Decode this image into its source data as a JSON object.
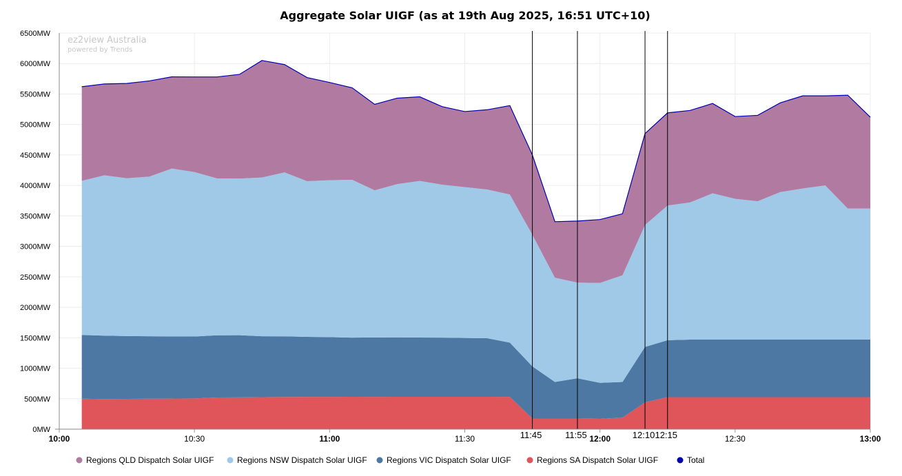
{
  "chart_data": {
    "type": "area",
    "stacked": true,
    "title": "Aggregate Solar UIGF (as at 19th Aug 2025, 16:51 UTC+10)",
    "watermark": {
      "line1": "ez2view Australia",
      "line2": "powered by Trends"
    },
    "x": [
      "10:05",
      "10:10",
      "10:15",
      "10:20",
      "10:25",
      "10:30",
      "10:35",
      "10:40",
      "10:45",
      "10:50",
      "10:55",
      "11:00",
      "11:05",
      "11:10",
      "11:15",
      "11:20",
      "11:25",
      "11:30",
      "11:35",
      "11:40",
      "11:45",
      "11:50",
      "11:55",
      "12:00",
      "12:05",
      "12:10",
      "12:15",
      "12:20",
      "12:25",
      "12:30",
      "12:35",
      "12:40",
      "12:45",
      "12:50",
      "12:55",
      "13:00"
    ],
    "x_ticks": [
      {
        "t": "10:00",
        "label": "10:00",
        "bold": true
      },
      {
        "t": "10:30",
        "label": "10:30",
        "bold": false
      },
      {
        "t": "11:00",
        "label": "11:00",
        "bold": true
      },
      {
        "t": "11:30",
        "label": "11:30",
        "bold": false
      },
      {
        "t": "12:00",
        "label": "12:00",
        "bold": true
      },
      {
        "t": "12:30",
        "label": "12:30",
        "bold": false
      },
      {
        "t": "13:00",
        "label": "13:00",
        "bold": true
      }
    ],
    "xlim": [
      "10:00",
      "13:00"
    ],
    "ylim": [
      0,
      6500
    ],
    "y_ticks": [
      {
        "v": 0,
        "label": "0MW"
      },
      {
        "v": 500,
        "label": "500MW"
      },
      {
        "v": 1000,
        "label": "1000MW"
      },
      {
        "v": 1500,
        "label": "1500MW"
      },
      {
        "v": 2000,
        "label": "2000MW"
      },
      {
        "v": 2500,
        "label": "2500MW"
      },
      {
        "v": 3000,
        "label": "3000MW"
      },
      {
        "v": 3500,
        "label": "3500MW"
      },
      {
        "v": 4000,
        "label": "4000MW"
      },
      {
        "v": 4500,
        "label": "4500MW"
      },
      {
        "v": 5000,
        "label": "5000MW"
      },
      {
        "v": 5500,
        "label": "5500MW"
      },
      {
        "v": 6000,
        "label": "6000MW"
      },
      {
        "v": 6500,
        "label": "6500MW"
      }
    ],
    "grid": true,
    "legend_position": "bottom",
    "series": [
      {
        "name": "Regions SA Dispatch Solar UIGF",
        "color": "#e05559",
        "values": [
          500,
          495,
          498,
          500,
          502,
          505,
          520,
          522,
          525,
          528,
          530,
          530,
          532,
          530,
          532,
          532,
          532,
          532,
          532,
          530,
          175,
          175,
          175,
          170,
          190,
          440,
          525,
          525,
          525,
          525,
          525,
          525,
          525,
          525,
          525,
          525
        ]
      },
      {
        "name": "Regions VIC Dispatch Solar UIGF",
        "color": "#4e78a4",
        "values": [
          1045,
          1040,
          1030,
          1025,
          1020,
          1015,
          1020,
          1020,
          1000,
          995,
          985,
          980,
          970,
          975,
          975,
          972,
          970,
          965,
          960,
          890,
          855,
          600,
          660,
          590,
          585,
          910,
          935,
          945,
          945,
          945,
          945,
          945,
          945,
          945,
          945,
          945
        ]
      },
      {
        "name": "Regions NSW Dispatch Solar UIGF",
        "color": "#a0c9e8",
        "values": [
          2530,
          2630,
          2590,
          2620,
          2755,
          2700,
          2575,
          2570,
          2605,
          2690,
          2555,
          2575,
          2590,
          2415,
          2515,
          2570,
          2510,
          2475,
          2440,
          2430,
          2160,
          1710,
          1570,
          1640,
          1750,
          2000,
          2210,
          2250,
          2400,
          2310,
          2270,
          2420,
          2480,
          2530,
          2150,
          2150
        ]
      },
      {
        "name": "Regions QLD Dispatch Solar UIGF",
        "color": "#b07aa1",
        "values": [
          1545,
          1500,
          1555,
          1570,
          1505,
          1560,
          1665,
          1710,
          1920,
          1770,
          1700,
          1605,
          1510,
          1410,
          1410,
          1380,
          1280,
          1240,
          1310,
          1460,
          1310,
          920,
          1010,
          1040,
          1010,
          1500,
          1520,
          1510,
          1475,
          1350,
          1410,
          1465,
          1520,
          1470,
          1860,
          1500
        ]
      }
    ],
    "total": {
      "name": "Total",
      "color": "#0000b0",
      "values": [
        5620,
        5665,
        5673,
        5715,
        5782,
        5780,
        5780,
        5822,
        6050,
        5983,
        5770,
        5690,
        5602,
        5330,
        5432,
        5454,
        5292,
        5212,
        5242,
        5310,
        4500,
        3405,
        3415,
        3440,
        3535,
        4850,
        5190,
        5230,
        5345,
        5130,
        5150,
        5355,
        5470,
        5470,
        5480,
        5120
      ]
    },
    "markers": [
      "11:45",
      "11:55",
      "12:10",
      "12:15"
    ]
  },
  "legend": [
    {
      "label": "Regions QLD Dispatch Solar UIGF",
      "color": "#b07aa1"
    },
    {
      "label": "Regions NSW Dispatch Solar UIGF",
      "color": "#a0c9e8"
    },
    {
      "label": "Regions VIC Dispatch Solar UIGF",
      "color": "#4e78a4"
    },
    {
      "label": "Regions SA Dispatch Solar UIGF",
      "color": "#e05559"
    },
    {
      "label": "Total",
      "color": "#0000b0"
    }
  ]
}
